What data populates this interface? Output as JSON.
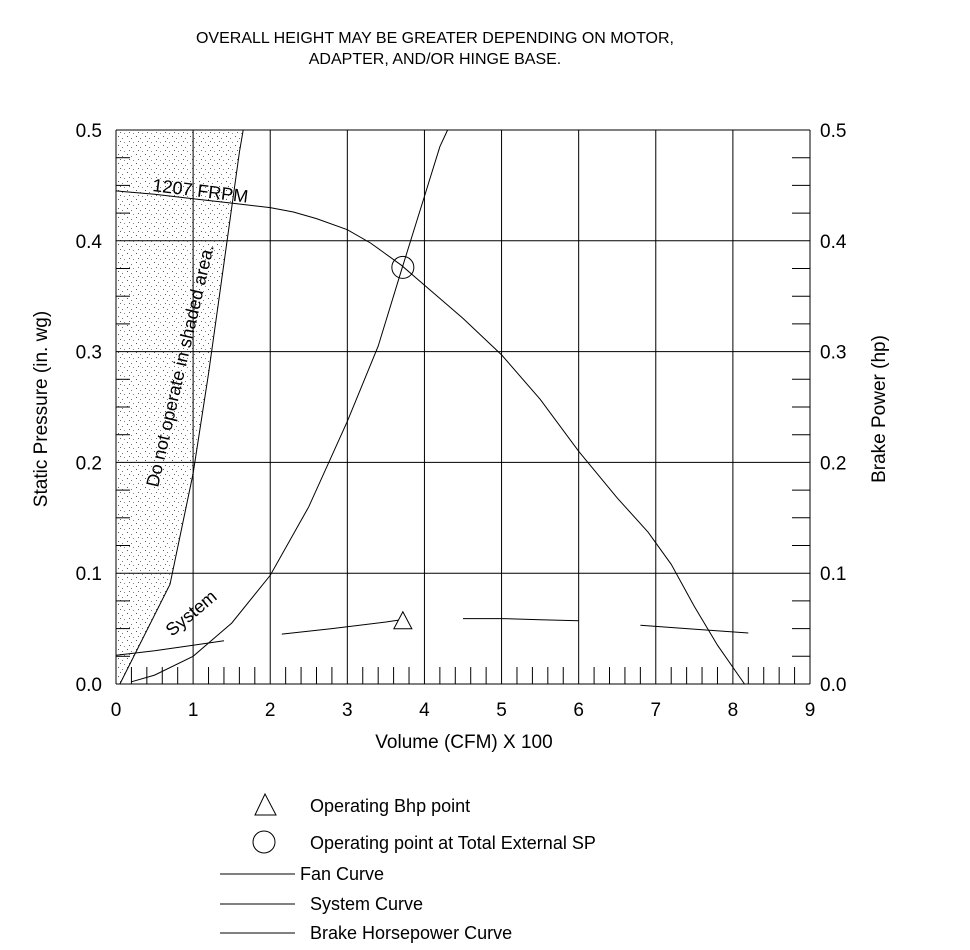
{
  "note_lines": [
    "OVERALL HEIGHT MAY BE GREATER DEPENDING ON MOTOR,",
    "ADAPTER, AND/OR HINGE BASE."
  ],
  "chart_data": {
    "type": "line",
    "xlabel": "Volume (CFM) X 100",
    "ylabel_left": "Static Pressure (in. wg)",
    "ylabel_right": "Brake Power (hp)",
    "xlim": [
      0,
      9
    ],
    "ylim_left": [
      0,
      0.5
    ],
    "ylim_right": [
      0,
      0.5
    ],
    "x_ticks": [
      "0",
      "1",
      "2",
      "3",
      "4",
      "5",
      "6",
      "7",
      "8",
      "9"
    ],
    "y_ticks_left": [
      "0.0",
      "0.1",
      "0.2",
      "0.3",
      "0.4",
      "0.5"
    ],
    "y_ticks_right": [
      "0.0",
      "0.1",
      "0.2",
      "0.3",
      "0.4",
      "0.5"
    ],
    "grid": true,
    "series": [
      {
        "name": "Fan Curve",
        "label": "1207 FRPM",
        "points": [
          [
            0,
            0.445
          ],
          [
            0.5,
            0.442
          ],
          [
            1.0,
            0.438
          ],
          [
            1.5,
            0.434
          ],
          [
            2.0,
            0.43
          ],
          [
            2.3,
            0.426
          ],
          [
            2.6,
            0.42
          ],
          [
            3.0,
            0.41
          ],
          [
            3.3,
            0.398
          ],
          [
            3.7,
            0.378
          ],
          [
            4.0,
            0.36
          ],
          [
            4.5,
            0.33
          ],
          [
            5.0,
            0.297
          ],
          [
            5.5,
            0.257
          ],
          [
            6.0,
            0.21
          ],
          [
            6.5,
            0.168
          ],
          [
            6.9,
            0.137
          ],
          [
            7.2,
            0.108
          ],
          [
            7.5,
            0.07
          ],
          [
            7.8,
            0.035
          ],
          [
            8.15,
            0.0
          ]
        ]
      },
      {
        "name": "System Curve",
        "label": "System",
        "points": [
          [
            0.2,
            0.002
          ],
          [
            0.5,
            0.008
          ],
          [
            1.0,
            0.025
          ],
          [
            1.5,
            0.055
          ],
          [
            2.0,
            0.098
          ],
          [
            2.5,
            0.16
          ],
          [
            3.0,
            0.237
          ],
          [
            3.4,
            0.305
          ],
          [
            3.7,
            0.373
          ],
          [
            4.0,
            0.44
          ],
          [
            4.2,
            0.485
          ],
          [
            4.3,
            0.5
          ]
        ]
      },
      {
        "name": "Brake Horsepower Curve",
        "segments": [
          [
            [
              0.0,
              0.026
            ],
            [
              0.5,
              0.03
            ],
            [
              1.0,
              0.035
            ],
            [
              1.4,
              0.039
            ]
          ],
          [
            [
              2.15,
              0.045
            ],
            [
              2.8,
              0.05
            ],
            [
              3.5,
              0.056
            ],
            [
              3.7,
              0.058
            ]
          ],
          [
            [
              4.5,
              0.059
            ],
            [
              5.0,
              0.059
            ],
            [
              5.5,
              0.058
            ],
            [
              6.0,
              0.057
            ]
          ],
          [
            [
              6.8,
              0.053
            ],
            [
              7.4,
              0.05
            ],
            [
              8.2,
              0.046
            ]
          ]
        ]
      }
    ],
    "operating_point_total_sp": [
      3.72,
      0.376
    ],
    "operating_bhp_point": [
      3.72,
      0.058
    ],
    "shaded_region_label": "Do not operate in shaded area.",
    "shaded_boundary": [
      [
        0.05,
        0.0
      ],
      [
        0.7,
        0.09
      ],
      [
        1.0,
        0.19
      ],
      [
        1.2,
        0.28
      ],
      [
        1.4,
        0.38
      ],
      [
        1.6,
        0.48
      ],
      [
        1.65,
        0.5
      ]
    ],
    "legend": [
      {
        "symbol": "triangle",
        "label": "Operating Bhp point"
      },
      {
        "symbol": "circle",
        "label": "Operating point at Total External SP"
      },
      {
        "symbol": "line",
        "label": "Fan Curve"
      },
      {
        "symbol": "line",
        "label": "System Curve"
      },
      {
        "symbol": "line",
        "label": "Brake Horsepower Curve"
      }
    ]
  }
}
